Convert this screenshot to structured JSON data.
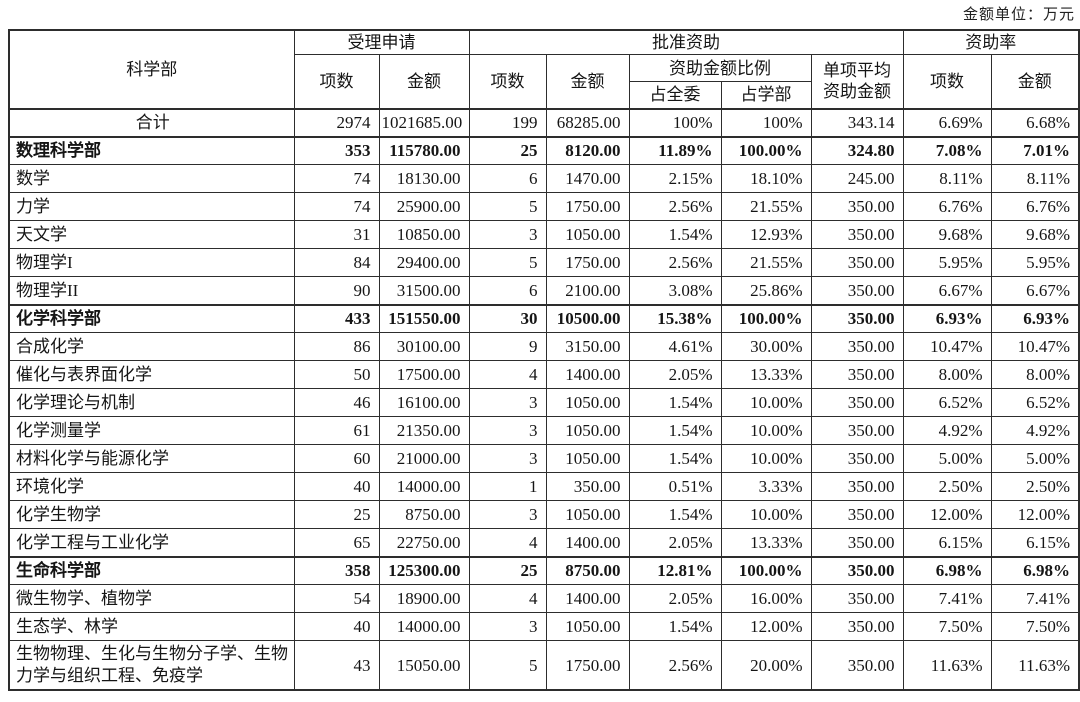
{
  "unit_label": "金额单位：万元",
  "table": {
    "headers": {
      "dept": "科学部",
      "accepted": "受理申请",
      "approved": "批准资助",
      "rate": "资助率",
      "count": "项数",
      "amount": "金额",
      "ratio": "资助金额比例",
      "pct_committee": "占全委",
      "pct_dept": "占学部",
      "avg": "单项平均\n资助金额"
    },
    "rows": [
      {
        "label": "合计",
        "style": "total",
        "values": [
          "2974",
          "1021685.00",
          "199",
          "68285.00",
          "100%",
          "100%",
          "343.14",
          "6.69%",
          "6.68%"
        ]
      },
      {
        "label": "数理科学部",
        "style": "section",
        "values": [
          "353",
          "115780.00",
          "25",
          "8120.00",
          "11.89%",
          "100.00%",
          "324.80",
          "7.08%",
          "7.01%"
        ]
      },
      {
        "label": "数学",
        "style": "",
        "values": [
          "74",
          "18130.00",
          "6",
          "1470.00",
          "2.15%",
          "18.10%",
          "245.00",
          "8.11%",
          "8.11%"
        ]
      },
      {
        "label": "力学",
        "style": "",
        "values": [
          "74",
          "25900.00",
          "5",
          "1750.00",
          "2.56%",
          "21.55%",
          "350.00",
          "6.76%",
          "6.76%"
        ]
      },
      {
        "label": "天文学",
        "style": "",
        "values": [
          "31",
          "10850.00",
          "3",
          "1050.00",
          "1.54%",
          "12.93%",
          "350.00",
          "9.68%",
          "9.68%"
        ]
      },
      {
        "label": "物理学I",
        "style": "",
        "values": [
          "84",
          "29400.00",
          "5",
          "1750.00",
          "2.56%",
          "21.55%",
          "350.00",
          "5.95%",
          "5.95%"
        ]
      },
      {
        "label": "物理学II",
        "style": "",
        "values": [
          "90",
          "31500.00",
          "6",
          "2100.00",
          "3.08%",
          "25.86%",
          "350.00",
          "6.67%",
          "6.67%"
        ]
      },
      {
        "label": "化学科学部",
        "style": "section",
        "values": [
          "433",
          "151550.00",
          "30",
          "10500.00",
          "15.38%",
          "100.00%",
          "350.00",
          "6.93%",
          "6.93%"
        ]
      },
      {
        "label": "合成化学",
        "style": "",
        "values": [
          "86",
          "30100.00",
          "9",
          "3150.00",
          "4.61%",
          "30.00%",
          "350.00",
          "10.47%",
          "10.47%"
        ]
      },
      {
        "label": "催化与表界面化学",
        "style": "",
        "values": [
          "50",
          "17500.00",
          "4",
          "1400.00",
          "2.05%",
          "13.33%",
          "350.00",
          "8.00%",
          "8.00%"
        ]
      },
      {
        "label": "化学理论与机制",
        "style": "",
        "values": [
          "46",
          "16100.00",
          "3",
          "1050.00",
          "1.54%",
          "10.00%",
          "350.00",
          "6.52%",
          "6.52%"
        ]
      },
      {
        "label": "化学测量学",
        "style": "",
        "values": [
          "61",
          "21350.00",
          "3",
          "1050.00",
          "1.54%",
          "10.00%",
          "350.00",
          "4.92%",
          "4.92%"
        ]
      },
      {
        "label": "材料化学与能源化学",
        "style": "",
        "values": [
          "60",
          "21000.00",
          "3",
          "1050.00",
          "1.54%",
          "10.00%",
          "350.00",
          "5.00%",
          "5.00%"
        ]
      },
      {
        "label": "环境化学",
        "style": "",
        "values": [
          "40",
          "14000.00",
          "1",
          "350.00",
          "0.51%",
          "3.33%",
          "350.00",
          "2.50%",
          "2.50%"
        ]
      },
      {
        "label": "化学生物学",
        "style": "",
        "values": [
          "25",
          "8750.00",
          "3",
          "1050.00",
          "1.54%",
          "10.00%",
          "350.00",
          "12.00%",
          "12.00%"
        ]
      },
      {
        "label": "化学工程与工业化学",
        "style": "",
        "values": [
          "65",
          "22750.00",
          "4",
          "1400.00",
          "2.05%",
          "13.33%",
          "350.00",
          "6.15%",
          "6.15%"
        ]
      },
      {
        "label": "生命科学部",
        "style": "section",
        "values": [
          "358",
          "125300.00",
          "25",
          "8750.00",
          "12.81%",
          "100.00%",
          "350.00",
          "6.98%",
          "6.98%"
        ]
      },
      {
        "label": "微生物学、植物学",
        "style": "",
        "values": [
          "54",
          "18900.00",
          "4",
          "1400.00",
          "2.05%",
          "16.00%",
          "350.00",
          "7.41%",
          "7.41%"
        ]
      },
      {
        "label": "生态学、林学",
        "style": "",
        "values": [
          "40",
          "14000.00",
          "3",
          "1050.00",
          "1.54%",
          "12.00%",
          "350.00",
          "7.50%",
          "7.50%"
        ]
      },
      {
        "label": "生物物理、生化与生物分子学、生物力学与组织工程、免疫学",
        "style": "wrap2",
        "values": [
          "43",
          "15050.00",
          "5",
          "1750.00",
          "2.56%",
          "20.00%",
          "350.00",
          "11.63%",
          "11.63%"
        ]
      }
    ]
  }
}
